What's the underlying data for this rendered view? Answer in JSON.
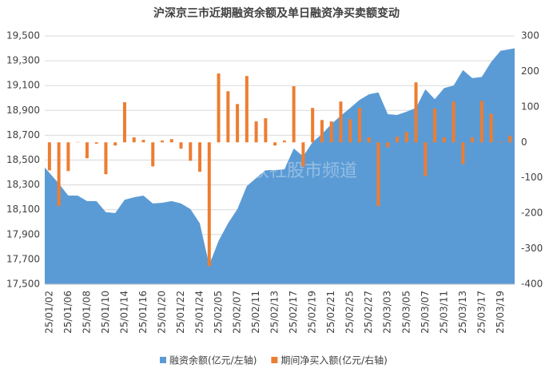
{
  "chart_data": {
    "type": "area-bar",
    "title": "沪深京三市近期融资余额及单日融资净买卖额变动",
    "watermark": "财联社股市频道",
    "categories": [
      "25/01/02",
      null,
      "25/01/06",
      null,
      "25/01/08",
      null,
      "25/01/10",
      null,
      "25/01/14",
      null,
      "25/01/16",
      null,
      "25/01/20",
      null,
      "25/01/22",
      null,
      "25/01/24",
      null,
      "25/02/05",
      null,
      "25/02/07",
      null,
      "25/02/11",
      null,
      "25/02/13",
      null,
      "25/02/17",
      null,
      "25/02/19",
      null,
      "25/02/21",
      null,
      "25/02/25",
      null,
      "25/02/27",
      null,
      "25/03/03",
      null,
      "25/03/05",
      null,
      "25/03/07",
      null,
      "25/03/11",
      null,
      "25/03/13",
      null,
      "25/03/17",
      null,
      "25/03/19",
      null
    ],
    "series": [
      {
        "name": "融资余额(亿元/左轴)",
        "type": "area",
        "color": "#5b9bd5",
        "values": [
          18440,
          18310,
          18214,
          18214,
          18170,
          18170,
          18080,
          18073,
          18180,
          18200,
          18214,
          18150,
          18156,
          18170,
          18150,
          18105,
          17990,
          17655,
          17850,
          17990,
          18105,
          18290,
          18355,
          18420,
          18420,
          18425,
          18593,
          18530,
          18645,
          18710,
          18790,
          18857,
          18920,
          18985,
          19030,
          19045,
          18870,
          18863,
          18890,
          18920,
          19070,
          18990,
          19080,
          19100,
          19225,
          19160,
          19170,
          19290,
          19380,
          19400
        ]
      },
      {
        "name": "期间净买入额(亿元/右轴)",
        "type": "bar",
        "axis": "y2",
        "color": "#ed7d31",
        "values": [
          -79,
          -180,
          -81,
          1,
          -45,
          -4,
          -90,
          -9,
          113,
          14,
          7,
          -68,
          5,
          9,
          -18,
          -52,
          -83,
          -349,
          194,
          144,
          108,
          187,
          59,
          68,
          -9,
          5,
          158,
          -68,
          97,
          63,
          59,
          115,
          65,
          97,
          14,
          -180,
          -14,
          16,
          29,
          169,
          -95,
          95,
          14,
          115,
          -61,
          14,
          117,
          81,
          2,
          18
        ]
      }
    ],
    "ylim": [
      17500,
      19500
    ],
    "yticks": [
      {
        "value": 17500,
        "label": "17,500"
      },
      {
        "value": 17700,
        "label": "17,700"
      },
      {
        "value": 17900,
        "label": "17,900"
      },
      {
        "value": 18100,
        "label": "18,100"
      },
      {
        "value": 18300,
        "label": "18,300"
      },
      {
        "value": 18500,
        "label": "18,500"
      },
      {
        "value": 18700,
        "label": "18,700"
      },
      {
        "value": 18900,
        "label": "18,900"
      },
      {
        "value": 19100,
        "label": "19,100"
      },
      {
        "value": 19300,
        "label": "19,300"
      },
      {
        "value": 19500,
        "label": "19,500"
      }
    ],
    "y2lim": [
      -400,
      300
    ],
    "y2ticks": [
      -400,
      -300,
      -200,
      -100,
      0,
      100,
      200,
      300
    ],
    "grid": true,
    "legend": "bottom"
  }
}
